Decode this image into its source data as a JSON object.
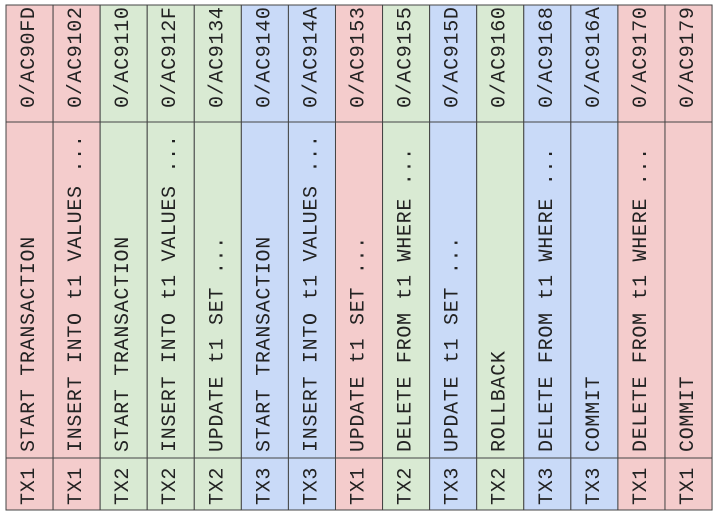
{
  "rows": [
    {
      "tx": "TX1",
      "statement": "START TRANSACTION",
      "lsn": "0/AC90FD",
      "color": "#f4cccc"
    },
    {
      "tx": "TX1",
      "statement": "INSERT INTO t1 VALUES ...",
      "lsn": "0/AC9102",
      "color": "#f4cccc"
    },
    {
      "tx": "TX2",
      "statement": "START TRANSACTION",
      "lsn": "0/AC9110",
      "color": "#d9ead3"
    },
    {
      "tx": "TX2",
      "statement": "INSERT INTO t1 VALUES ...",
      "lsn": "0/AC912F",
      "color": "#d9ead3"
    },
    {
      "tx": "TX2",
      "statement": "UPDATE t1 SET ...",
      "lsn": "0/AC9134",
      "color": "#d9ead3"
    },
    {
      "tx": "TX3",
      "statement": "START TRANSACTION",
      "lsn": "0/AC9140",
      "color": "#c9daf8"
    },
    {
      "tx": "TX3",
      "statement": "INSERT INTO t1 VALUES ...",
      "lsn": "0/AC914A",
      "color": "#c9daf8"
    },
    {
      "tx": "TX1",
      "statement": "UPDATE t1 SET ...",
      "lsn": "0/AC9153",
      "color": "#f4cccc"
    },
    {
      "tx": "TX2",
      "statement": "DELETE FROM t1 WHERE ...",
      "lsn": "0/AC9155",
      "color": "#d9ead3"
    },
    {
      "tx": "TX3",
      "statement": "UPDATE t1 SET ...",
      "lsn": "0/AC915D",
      "color": "#c9daf8"
    },
    {
      "tx": "TX2",
      "statement": "ROLLBACK",
      "lsn": "0/AC9160",
      "color": "#d9ead3"
    },
    {
      "tx": "TX3",
      "statement": "DELETE FROM t1 WHERE ...",
      "lsn": "0/AC9168",
      "color": "#c9daf8"
    },
    {
      "tx": "TX3",
      "statement": "COMMIT",
      "lsn": "0/AC916A",
      "color": "#c9daf8"
    },
    {
      "tx": "TX1",
      "statement": "DELETE FROM t1 WHERE ...",
      "lsn": "0/AC9170",
      "color": "#f4cccc"
    },
    {
      "tx": "TX1",
      "statement": "COMMIT",
      "lsn": "0/AC9179",
      "color": "#f4cccc"
    }
  ]
}
